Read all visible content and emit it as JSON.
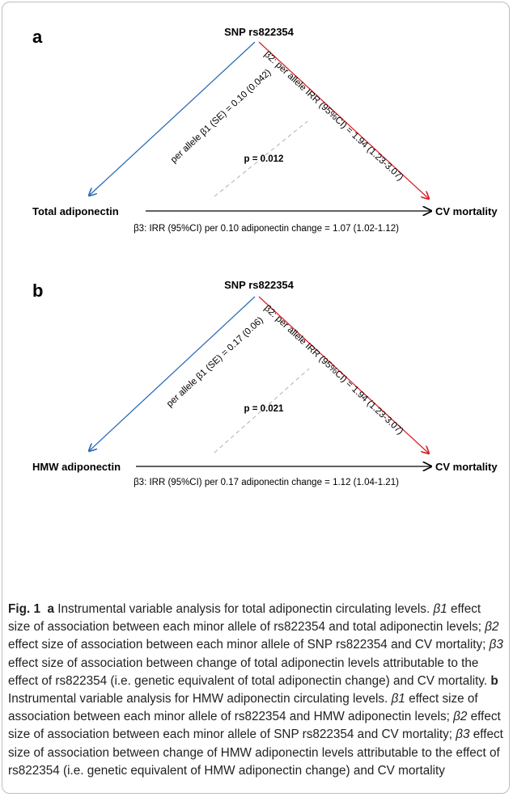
{
  "panels": [
    {
      "letter": "a",
      "snp": "SNP rs822354",
      "exposure": "Total adiponectin",
      "outcome": "CV mortality",
      "beta1": "per allele β1 (SE) = 0.10 (0.042)",
      "beta2": "β2: per allele IRR (95%CI) = 1.94 (1.23-3.07)",
      "p_value": "p = 0.012",
      "beta3": "β3: IRR (95%CI) per 0.10 adiponectin change = 1.07 (1.02-1.12)"
    },
    {
      "letter": "b",
      "snp": "SNP rs822354",
      "exposure": "HMW adiponectin",
      "outcome": "CV mortality",
      "beta1": "per allele β1 (SE) = 0.17 (0.06)",
      "beta2": "β2: per allele IRR (95%CI) = 1.94 (1.23-3.07)",
      "p_value": "p = 0.021",
      "beta3": "β3: IRR (95%CI) per 0.17 adiponectin change = 1.12 (1.04-1.21)"
    }
  ],
  "colors": {
    "beta1_arrow": "#2e6db4",
    "beta2_arrow": "#d8232a",
    "dashed": "#b0b0b0"
  },
  "caption": {
    "fig_label": "Fig. 1",
    "a_label": "a",
    "a_intro": "Instrumental variable analysis for total adiponectin circulating levels.",
    "a_b1_sym": "β1",
    "a_b1_text": "effect size of association between each minor allele of rs822354 and total adiponectin levels;",
    "a_b2_sym": "β2",
    "a_b2_text": "effect size of association between each minor allele of SNP rs822354 and CV mortality;",
    "a_b3_sym": "β3",
    "a_b3_text": "effect size of association between change of total adiponectin levels attributable to the effect of rs822354 (i.e. genetic equivalent of total adiponectin change) and CV mortality.",
    "b_label": "b",
    "b_intro": "Instrumental variable analysis for HMW adiponectin circulating levels.",
    "b_b1_sym": "β1",
    "b_b1_text": "effect size of association between each minor allele of rs822354 and HMW adiponectin levels;",
    "b_b2_sym": "β2",
    "b_b2_text": "effect size of association between each minor allele of SNP rs822354 and CV mortality;",
    "b_b3_sym": "β3",
    "b_b3_text": "effect size of association between change of HMW adiponectin levels attributable to the effect of rs822354 (i.e. genetic equivalent of HMW adiponectin change) and CV mortality"
  }
}
